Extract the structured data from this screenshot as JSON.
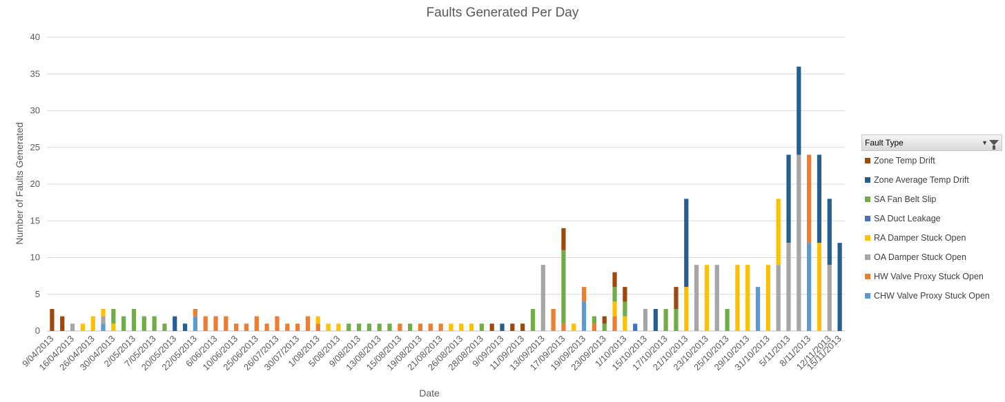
{
  "chart_data": {
    "type": "bar",
    "stacked": true,
    "title": "Faults Generated Per Day",
    "xlabel": "Date",
    "ylabel": "Number of Faults Generated",
    "ylim": [
      0,
      40
    ],
    "yticks": [
      0,
      5,
      10,
      15,
      20,
      25,
      30,
      35,
      40
    ],
    "grid": true,
    "legend_placement": "right",
    "legend_title": "Fault Type",
    "xtick_labels": [
      "9/04/2013",
      "16/04/2013",
      "26/04/2013",
      "30/04/2013",
      "2/05/2013",
      "7/05/2013",
      "20/05/2013",
      "22/05/2013",
      "6/06/2013",
      "10/06/2013",
      "25/06/2013",
      "26/07/2013",
      "30/07/2013",
      "1/08/2013",
      "5/08/2013",
      "9/08/2013",
      "13/08/2013",
      "15/08/2013",
      "19/08/2013",
      "21/08/2013",
      "26/08/2013",
      "28/08/2013",
      "9/09/2013",
      "11/09/2013",
      "13/09/2013",
      "17/09/2013",
      "19/09/2013",
      "23/09/2013",
      "1/10/2013",
      "15/10/2013",
      "17/10/2013",
      "21/10/2013",
      "23/10/2013",
      "25/10/2013",
      "29/10/2013",
      "31/10/2013",
      "5/11/2013",
      "8/11/2013",
      "12/11/2013",
      "15/11/2013"
    ],
    "series": [
      {
        "name": "Zone Temp Drift",
        "color": "#9E480E"
      },
      {
        "name": "Zone Average Temp Drift",
        "color": "#255E91"
      },
      {
        "name": "SA Fan Belt Slip",
        "color": "#70AD47"
      },
      {
        "name": "SA Duct Leakage",
        "color": "#4472C4"
      },
      {
        "name": "RA Damper Stuck Open",
        "color": "#FFC000"
      },
      {
        "name": "OA Damper Stuck Open",
        "color": "#A5A5A5"
      },
      {
        "name": "HW Valve Proxy Stuck Open",
        "color": "#ED7D31"
      },
      {
        "name": "CHW Valve Proxy Stuck Open",
        "color": "#5B9BD5"
      }
    ],
    "bars": [
      [
        {
          "s": 0,
          "v": 3
        }
      ],
      [
        {
          "s": 0,
          "v": 2
        }
      ],
      [
        {
          "s": 5,
          "v": 1
        }
      ],
      [
        {
          "s": 4,
          "v": 1
        }
      ],
      [
        {
          "s": 4,
          "v": 2
        }
      ],
      [
        {
          "s": 7,
          "v": 1
        },
        {
          "s": 5,
          "v": 1
        },
        {
          "s": 4,
          "v": 1
        }
      ],
      [
        {
          "s": 4,
          "v": 1
        },
        {
          "s": 2,
          "v": 2
        }
      ],
      [
        {
          "s": 2,
          "v": 2
        }
      ],
      [
        {
          "s": 2,
          "v": 3
        }
      ],
      [
        {
          "s": 2,
          "v": 2
        }
      ],
      [
        {
          "s": 2,
          "v": 2
        }
      ],
      [
        {
          "s": 2,
          "v": 1
        }
      ],
      [
        {
          "s": 1,
          "v": 2
        }
      ],
      [
        {
          "s": 1,
          "v": 1
        }
      ],
      [
        {
          "s": 7,
          "v": 2
        },
        {
          "s": 6,
          "v": 1
        }
      ],
      [
        {
          "s": 6,
          "v": 2
        }
      ],
      [
        {
          "s": 6,
          "v": 2
        }
      ],
      [
        {
          "s": 6,
          "v": 2
        }
      ],
      [
        {
          "s": 6,
          "v": 1
        }
      ],
      [
        {
          "s": 6,
          "v": 1
        }
      ],
      [
        {
          "s": 6,
          "v": 2
        }
      ],
      [
        {
          "s": 6,
          "v": 1
        }
      ],
      [
        {
          "s": 6,
          "v": 2
        }
      ],
      [
        {
          "s": 6,
          "v": 1
        }
      ],
      [
        {
          "s": 6,
          "v": 1
        }
      ],
      [
        {
          "s": 6,
          "v": 2
        }
      ],
      [
        {
          "s": 6,
          "v": 1
        },
        {
          "s": 4,
          "v": 1
        }
      ],
      [
        {
          "s": 4,
          "v": 1
        }
      ],
      [
        {
          "s": 4,
          "v": 1
        }
      ],
      [
        {
          "s": 2,
          "v": 1
        }
      ],
      [
        {
          "s": 2,
          "v": 1
        }
      ],
      [
        {
          "s": 2,
          "v": 1
        }
      ],
      [
        {
          "s": 2,
          "v": 1
        }
      ],
      [
        {
          "s": 2,
          "v": 1
        }
      ],
      [
        {
          "s": 6,
          "v": 1
        }
      ],
      [
        {
          "s": 2,
          "v": 1
        }
      ],
      [
        {
          "s": 6,
          "v": 1
        }
      ],
      [
        {
          "s": 6,
          "v": 1
        }
      ],
      [
        {
          "s": 6,
          "v": 1
        }
      ],
      [
        {
          "s": 4,
          "v": 1
        }
      ],
      [
        {
          "s": 4,
          "v": 1
        }
      ],
      [
        {
          "s": 4,
          "v": 1
        }
      ],
      [
        {
          "s": 2,
          "v": 1
        }
      ],
      [
        {
          "s": 0,
          "v": 1
        }
      ],
      [
        {
          "s": 1,
          "v": 1
        }
      ],
      [
        {
          "s": 0,
          "v": 1
        }
      ],
      [
        {
          "s": 0,
          "v": 1
        }
      ],
      [
        {
          "s": 2,
          "v": 3
        }
      ],
      [
        {
          "s": 5,
          "v": 9
        }
      ],
      [
        {
          "s": 6,
          "v": 3
        }
      ],
      [
        {
          "s": 6,
          "v": 1
        },
        {
          "s": 2,
          "v": 10
        },
        {
          "s": 0,
          "v": 3
        }
      ],
      [
        {
          "s": 4,
          "v": 1
        }
      ],
      [
        {
          "s": 7,
          "v": 4
        },
        {
          "s": 6,
          "v": 2
        }
      ],
      [
        {
          "s": 6,
          "v": 1
        },
        {
          "s": 2,
          "v": 1
        }
      ],
      [
        {
          "s": 2,
          "v": 1
        },
        {
          "s": 0,
          "v": 1
        }
      ],
      [
        {
          "s": 6,
          "v": 2
        },
        {
          "s": 4,
          "v": 2
        },
        {
          "s": 2,
          "v": 2
        },
        {
          "s": 0,
          "v": 2
        }
      ],
      [
        {
          "s": 4,
          "v": 2
        },
        {
          "s": 2,
          "v": 2
        },
        {
          "s": 0,
          "v": 2
        }
      ],
      [
        {
          "s": 3,
          "v": 1
        }
      ],
      [
        {
          "s": 5,
          "v": 3
        }
      ],
      [
        {
          "s": 1,
          "v": 3
        }
      ],
      [
        {
          "s": 2,
          "v": 3
        }
      ],
      [
        {
          "s": 2,
          "v": 3
        },
        {
          "s": 0,
          "v": 3
        }
      ],
      [
        {
          "s": 4,
          "v": 6
        },
        {
          "s": 1,
          "v": 12
        }
      ],
      [
        {
          "s": 5,
          "v": 9
        }
      ],
      [
        {
          "s": 4,
          "v": 9
        }
      ],
      [
        {
          "s": 5,
          "v": 9
        }
      ],
      [
        {
          "s": 2,
          "v": 3
        }
      ],
      [
        {
          "s": 4,
          "v": 9
        }
      ],
      [
        {
          "s": 4,
          "v": 9
        }
      ],
      [
        {
          "s": 7,
          "v": 6
        }
      ],
      [
        {
          "s": 4,
          "v": 9
        }
      ],
      [
        {
          "s": 5,
          "v": 9
        },
        {
          "s": 4,
          "v": 9
        }
      ],
      [
        {
          "s": 5,
          "v": 12
        },
        {
          "s": 1,
          "v": 12
        }
      ],
      [
        {
          "s": 5,
          "v": 24
        },
        {
          "s": 1,
          "v": 12
        }
      ],
      [
        {
          "s": 7,
          "v": 12
        },
        {
          "s": 6,
          "v": 12
        }
      ],
      [
        {
          "s": 4,
          "v": 12
        },
        {
          "s": 1,
          "v": 12
        }
      ],
      [
        {
          "s": 5,
          "v": 9
        },
        {
          "s": 1,
          "v": 9
        }
      ],
      [
        {
          "s": 1,
          "v": 12
        }
      ]
    ]
  }
}
